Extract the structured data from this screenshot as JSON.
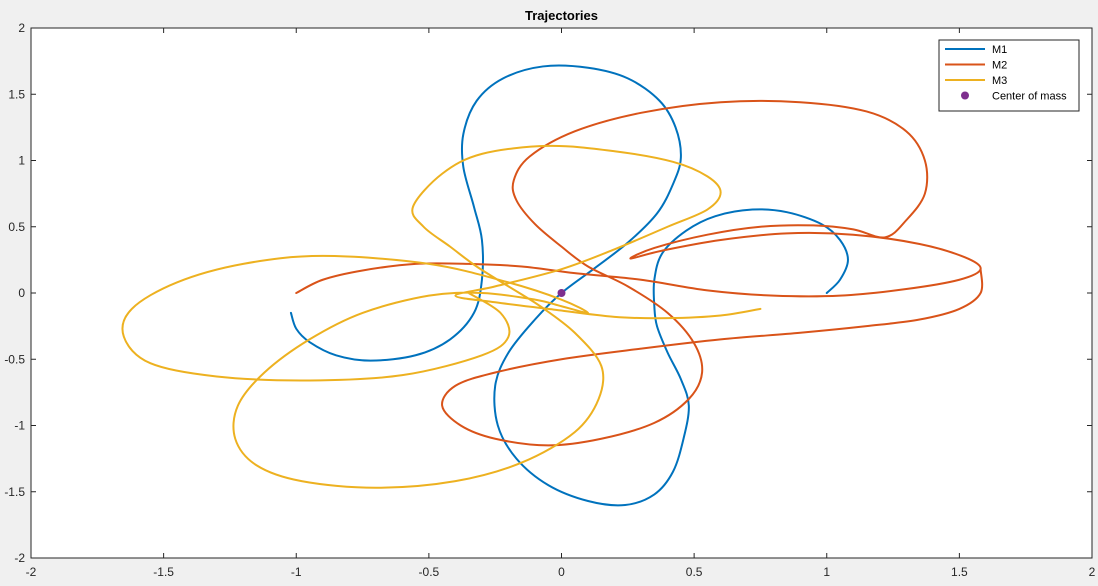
{
  "chart_data": {
    "type": "line",
    "title": "Trajectories",
    "xlabel": "",
    "ylabel": "",
    "xlim": [
      -2,
      2
    ],
    "ylim": [
      -2,
      2
    ],
    "xticks": [
      "-2",
      "-1.5",
      "-1",
      "-0.5",
      "0",
      "0.5",
      "1",
      "1.5",
      "2"
    ],
    "yticks": [
      "-2",
      "-1.5",
      "-1",
      "-0.5",
      "0",
      "0.5",
      "1",
      "1.5",
      "2"
    ],
    "grid": false,
    "legend_position": "top-right",
    "colors": {
      "M1": "#0072BD",
      "M2": "#D95319",
      "M3": "#EDB120",
      "Center of mass": "#7E2F8E"
    },
    "series": [
      {
        "name": "M1",
        "color": "#0072BD",
        "points": [
          [
            1.0,
            0.0
          ],
          [
            1.05,
            0.1
          ],
          [
            1.08,
            0.25
          ],
          [
            1.05,
            0.4
          ],
          [
            0.98,
            0.52
          ],
          [
            0.85,
            0.61
          ],
          [
            0.72,
            0.63
          ],
          [
            0.58,
            0.58
          ],
          [
            0.47,
            0.47
          ],
          [
            0.38,
            0.3
          ],
          [
            0.35,
            0.1
          ],
          [
            0.35,
            -0.1
          ],
          [
            0.36,
            -0.25
          ],
          [
            0.4,
            -0.45
          ],
          [
            0.45,
            -0.65
          ],
          [
            0.48,
            -0.85
          ],
          [
            0.46,
            -1.1
          ],
          [
            0.42,
            -1.35
          ],
          [
            0.35,
            -1.52
          ],
          [
            0.24,
            -1.6
          ],
          [
            0.1,
            -1.57
          ],
          [
            -0.05,
            -1.45
          ],
          [
            -0.17,
            -1.25
          ],
          [
            -0.24,
            -1.0
          ],
          [
            -0.25,
            -0.7
          ],
          [
            -0.2,
            -0.45
          ],
          [
            -0.1,
            -0.2
          ],
          [
            0.0,
            0.0
          ],
          [
            0.12,
            0.18
          ],
          [
            0.25,
            0.38
          ],
          [
            0.36,
            0.6
          ],
          [
            0.42,
            0.82
          ],
          [
            0.45,
            1.02
          ],
          [
            0.43,
            1.25
          ],
          [
            0.37,
            1.45
          ],
          [
            0.25,
            1.62
          ],
          [
            0.1,
            1.7
          ],
          [
            -0.07,
            1.71
          ],
          [
            -0.22,
            1.62
          ],
          [
            -0.32,
            1.45
          ],
          [
            -0.37,
            1.2
          ],
          [
            -0.37,
            0.95
          ],
          [
            -0.33,
            0.65
          ],
          [
            -0.3,
            0.4
          ],
          [
            -0.3,
            0.1
          ],
          [
            -0.33,
            -0.15
          ],
          [
            -0.42,
            -0.35
          ],
          [
            -0.55,
            -0.47
          ],
          [
            -0.72,
            -0.51
          ],
          [
            -0.85,
            -0.47
          ],
          [
            -0.95,
            -0.37
          ],
          [
            -1.0,
            -0.27
          ],
          [
            -1.02,
            -0.15
          ]
        ]
      },
      {
        "name": "M2",
        "color": "#D95319",
        "points": [
          [
            -1.0,
            0.0
          ],
          [
            -0.9,
            0.1
          ],
          [
            -0.75,
            0.17
          ],
          [
            -0.55,
            0.22
          ],
          [
            -0.35,
            0.22
          ],
          [
            -0.15,
            0.2
          ],
          [
            0.05,
            0.15
          ],
          [
            0.3,
            0.1
          ],
          [
            0.55,
            0.02
          ],
          [
            0.8,
            -0.02
          ],
          [
            1.05,
            -0.02
          ],
          [
            1.3,
            0.03
          ],
          [
            1.5,
            0.1
          ],
          [
            1.58,
            0.18
          ],
          [
            1.52,
            0.27
          ],
          [
            1.35,
            0.37
          ],
          [
            1.1,
            0.44
          ],
          [
            0.85,
            0.45
          ],
          [
            0.6,
            0.4
          ],
          [
            0.38,
            0.32
          ],
          [
            0.26,
            0.26
          ],
          [
            0.35,
            0.34
          ],
          [
            0.55,
            0.44
          ],
          [
            0.75,
            0.5
          ],
          [
            0.95,
            0.51
          ],
          [
            1.1,
            0.48
          ],
          [
            1.22,
            0.42
          ],
          [
            1.3,
            0.55
          ],
          [
            1.37,
            0.75
          ],
          [
            1.37,
            1.0
          ],
          [
            1.3,
            1.22
          ],
          [
            1.15,
            1.37
          ],
          [
            0.9,
            1.44
          ],
          [
            0.6,
            1.44
          ],
          [
            0.3,
            1.36
          ],
          [
            0.05,
            1.22
          ],
          [
            -0.12,
            1.03
          ],
          [
            -0.18,
            0.85
          ],
          [
            -0.17,
            0.7
          ],
          [
            -0.1,
            0.52
          ],
          [
            0.0,
            0.35
          ],
          [
            0.1,
            0.2
          ],
          [
            0.25,
            0.05
          ],
          [
            0.4,
            -0.15
          ],
          [
            0.5,
            -0.38
          ],
          [
            0.53,
            -0.6
          ],
          [
            0.48,
            -0.8
          ],
          [
            0.35,
            -0.98
          ],
          [
            0.15,
            -1.1
          ],
          [
            -0.05,
            -1.15
          ],
          [
            -0.25,
            -1.1
          ],
          [
            -0.38,
            -1.0
          ],
          [
            -0.45,
            -0.85
          ],
          [
            -0.4,
            -0.7
          ],
          [
            -0.25,
            -0.6
          ],
          [
            0.0,
            -0.5
          ],
          [
            0.3,
            -0.42
          ],
          [
            0.6,
            -0.35
          ],
          [
            0.9,
            -0.3
          ],
          [
            1.15,
            -0.25
          ],
          [
            1.35,
            -0.2
          ],
          [
            1.5,
            -0.12
          ],
          [
            1.58,
            0.0
          ],
          [
            1.58,
            0.18
          ]
        ]
      },
      {
        "name": "M3",
        "color": "#EDB120",
        "points": [
          [
            0.75,
            -0.12
          ],
          [
            0.6,
            -0.17
          ],
          [
            0.4,
            -0.19
          ],
          [
            0.2,
            -0.18
          ],
          [
            -0.05,
            -0.12
          ],
          [
            -0.25,
            -0.07
          ],
          [
            -0.4,
            -0.02
          ],
          [
            -0.25,
            0.05
          ],
          [
            0.0,
            0.18
          ],
          [
            0.2,
            0.33
          ],
          [
            0.4,
            0.5
          ],
          [
            0.55,
            0.63
          ],
          [
            0.6,
            0.76
          ],
          [
            0.55,
            0.88
          ],
          [
            0.42,
            0.99
          ],
          [
            0.2,
            1.07
          ],
          [
            -0.05,
            1.11
          ],
          [
            -0.3,
            1.05
          ],
          [
            -0.45,
            0.9
          ],
          [
            -0.56,
            0.65
          ],
          [
            -0.52,
            0.5
          ],
          [
            -0.42,
            0.35
          ],
          [
            -0.32,
            0.2
          ],
          [
            -0.2,
            0.05
          ],
          [
            -0.08,
            -0.1
          ],
          [
            0.05,
            -0.3
          ],
          [
            0.15,
            -0.55
          ],
          [
            0.14,
            -0.8
          ],
          [
            0.05,
            -1.05
          ],
          [
            -0.15,
            -1.28
          ],
          [
            -0.4,
            -1.42
          ],
          [
            -0.7,
            -1.47
          ],
          [
            -0.98,
            -1.42
          ],
          [
            -1.15,
            -1.3
          ],
          [
            -1.23,
            -1.1
          ],
          [
            -1.22,
            -0.85
          ],
          [
            -1.12,
            -0.6
          ],
          [
            -0.95,
            -0.35
          ],
          [
            -0.75,
            -0.15
          ],
          [
            -0.5,
            -0.02
          ],
          [
            -0.3,
            0.0
          ],
          [
            -0.1,
            -0.05
          ],
          [
            0.0,
            -0.1
          ],
          [
            0.1,
            -0.15
          ],
          [
            0.0,
            -0.05
          ],
          [
            -0.2,
            0.08
          ],
          [
            -0.5,
            0.22
          ],
          [
            -0.9,
            0.28
          ],
          [
            -1.2,
            0.22
          ],
          [
            -1.45,
            0.08
          ],
          [
            -1.62,
            -0.12
          ],
          [
            -1.65,
            -0.33
          ],
          [
            -1.55,
            -0.53
          ],
          [
            -1.3,
            -0.63
          ],
          [
            -0.95,
            -0.66
          ],
          [
            -0.6,
            -0.62
          ],
          [
            -0.3,
            -0.47
          ],
          [
            -0.2,
            -0.33
          ],
          [
            -0.23,
            -0.15
          ],
          [
            -0.35,
            0.0
          ]
        ]
      }
    ],
    "markers": [
      {
        "name": "Center of mass",
        "x": 0,
        "y": 0,
        "color": "#7E2F8E"
      }
    ]
  }
}
